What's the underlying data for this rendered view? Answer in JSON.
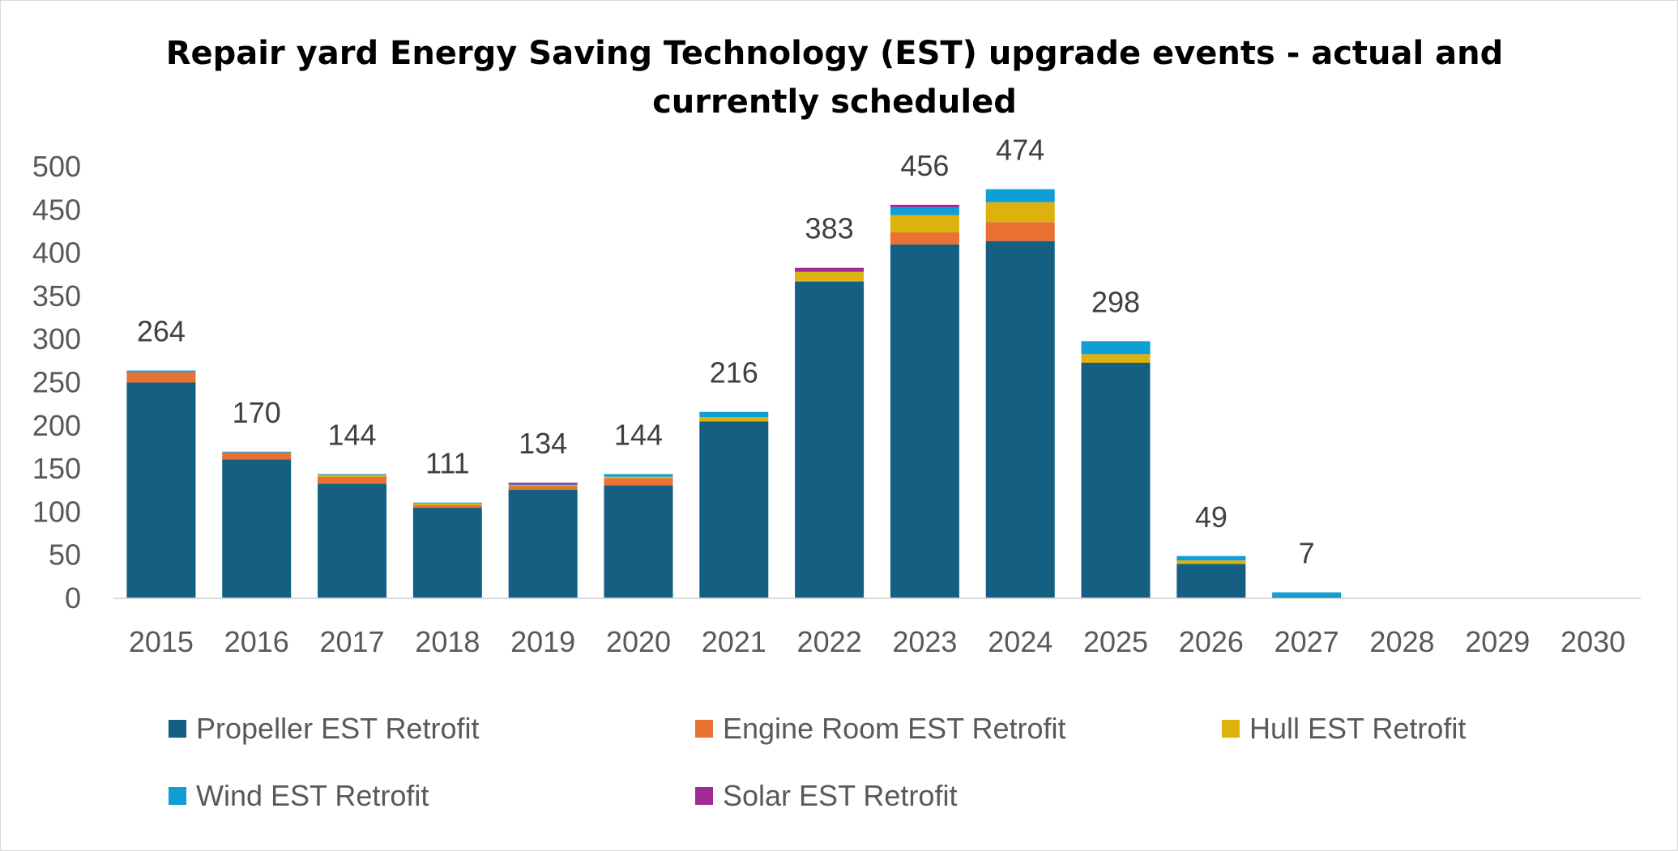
{
  "chart_data": {
    "type": "bar",
    "stacked": true,
    "title": "Repair yard Energy Saving Technology (EST) upgrade events - actual and currently scheduled",
    "xlabel": "",
    "ylabel": "",
    "ylim": [
      0,
      500
    ],
    "yticks": [
      0,
      50,
      100,
      150,
      200,
      250,
      300,
      350,
      400,
      450,
      500
    ],
    "grid": false,
    "legend_position": "bottom",
    "categories": [
      "2015",
      "2016",
      "2017",
      "2018",
      "2019",
      "2020",
      "2021",
      "2022",
      "2023",
      "2024",
      "2025",
      "2026",
      "2027",
      "2028",
      "2029",
      "2030"
    ],
    "totals": [
      264,
      170,
      144,
      111,
      134,
      144,
      216,
      383,
      456,
      474,
      298,
      49,
      7,
      null,
      null,
      null
    ],
    "series": [
      {
        "name": "Propeller EST Retrofit",
        "color": "#156082",
        "values": [
          250,
          161,
          133,
          105,
          126,
          131,
          205,
          367,
          410,
          414,
          273,
          40,
          2,
          0,
          0,
          0
        ]
      },
      {
        "name": "Engine Room EST Retrofit",
        "color": "#E97132",
        "values": [
          12,
          8,
          8,
          3,
          4,
          8,
          0,
          1,
          14,
          22,
          0,
          0,
          0,
          0,
          0,
          0
        ]
      },
      {
        "name": "Hull EST Retrofit",
        "color": "#DDB20D",
        "values": [
          0,
          0,
          2,
          2,
          1,
          2,
          5,
          10,
          20,
          23,
          10,
          4,
          0,
          0,
          0,
          0
        ]
      },
      {
        "name": "Wind EST Retrofit",
        "color": "#0F9ED5",
        "values": [
          2,
          1,
          1,
          1,
          1,
          3,
          6,
          1,
          9,
          15,
          15,
          5,
          5,
          0,
          0,
          0
        ]
      },
      {
        "name": "Solar EST Retrofit",
        "color": "#A02B93",
        "values": [
          0,
          0,
          0,
          0,
          2,
          0,
          0,
          4,
          3,
          0,
          0,
          0,
          0,
          0,
          0,
          0
        ]
      }
    ]
  }
}
